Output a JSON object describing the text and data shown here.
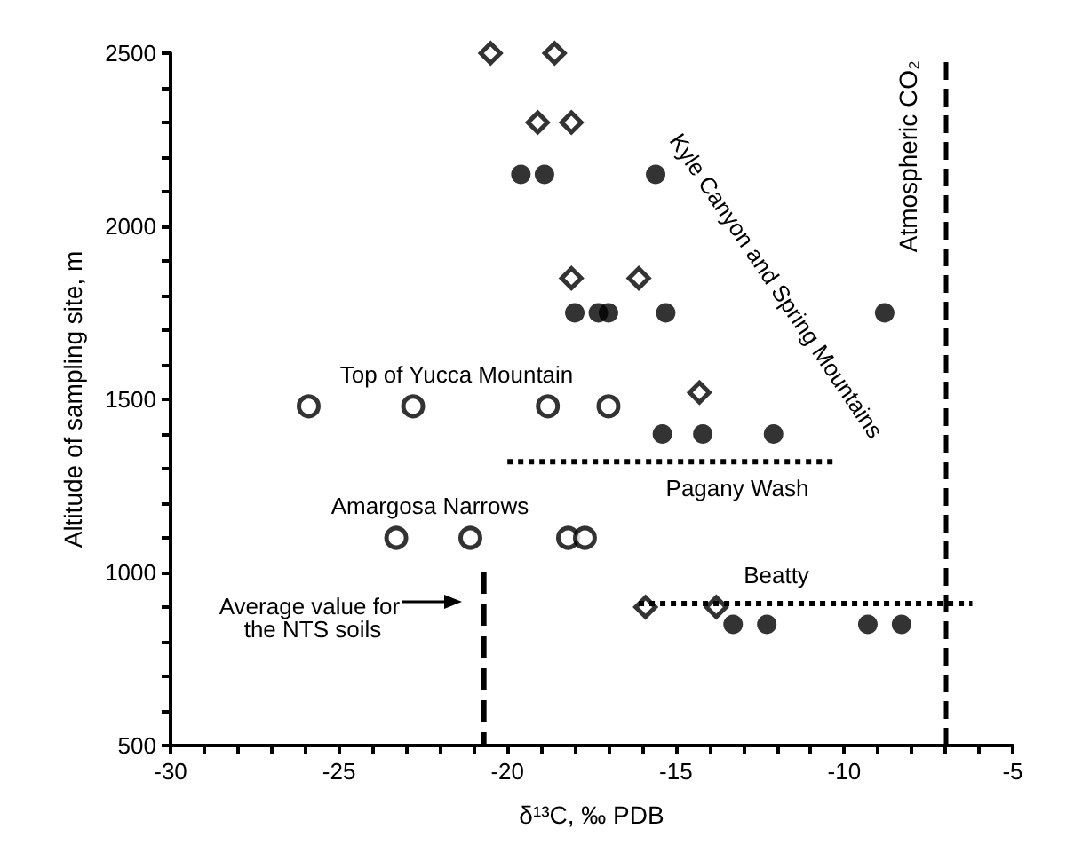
{
  "chart_data": {
    "type": "scatter",
    "xlabel": "δ¹³C, ‰ PDB",
    "ylabel": "Altitude of sampling site, m",
    "xlim": [
      -30,
      -5
    ],
    "xticks": [
      -30,
      -25,
      -20,
      -15,
      -10,
      -5
    ],
    "ylim": [
      500,
      2500
    ],
    "yticks": [
      500,
      1000,
      1500,
      2000,
      2500
    ],
    "grid": false,
    "series": [
      {
        "color": "#000000",
        "marker": "diamond",
        "x": [
          -20.5,
          -18.6,
          -19.1,
          -18.1,
          -18.1,
          -16.1,
          -14.3,
          -15.9,
          -13.8
        ],
        "values": [
          2500,
          2500,
          2300,
          2300,
          1850,
          1850,
          1520,
          900,
          900
        ]
      },
      {
        "color": "#000000",
        "marker": "circle",
        "x": [
          -19.6,
          -18.9,
          -15.6,
          -18.0,
          -17.3,
          -17.0,
          -15.3,
          -8.8,
          -15.4,
          -14.2,
          -12.1,
          -13.3,
          -12.3,
          -9.3,
          -8.3
        ],
        "values": [
          2150,
          2150,
          2150,
          1750,
          1750,
          1750,
          1750,
          1750,
          1400,
          1400,
          1400,
          850,
          850,
          850,
          850
        ]
      },
      {
        "color": "#000000",
        "marker": "circle",
        "x": [
          -25.9,
          -22.8,
          -18.8,
          -17.0,
          -23.3,
          -21.1,
          -18.2,
          -17.7
        ],
        "values": [
          1480,
          1480,
          1480,
          1480,
          1100,
          1100,
          1100,
          1100
        ]
      },
      {
        "type": "line",
        "color": "#000000",
        "marker": "none",
        "line_style": "dotted",
        "x": [
          -20.0,
          -10.2
        ],
        "values": [
          1320,
          1320
        ]
      },
      {
        "type": "line",
        "color": "#000000",
        "marker": "none",
        "line_style": "dotted",
        "x": [
          -16.1,
          -6.2
        ],
        "values": [
          910,
          910
        ]
      },
      {
        "type": "line",
        "color": "#000000",
        "marker": "none",
        "line_style": "dashed",
        "x": [
          -20.7,
          -20.7
        ],
        "values": [
          1000,
          500
        ]
      }
    ],
    "ref_lines": [
      {
        "axis": "x",
        "value": -7,
        "label": "Atmospheric CO₂",
        "line_style": "dashed",
        "color": "#000000"
      }
    ],
    "annotations": [
      "Top of Yucca Mountain",
      "Amargosa Narrows",
      "Pagany Wash",
      "Beatty",
      "Kyle Canyon and Spring Mountains",
      "Average value for the NTS soils"
    ]
  }
}
